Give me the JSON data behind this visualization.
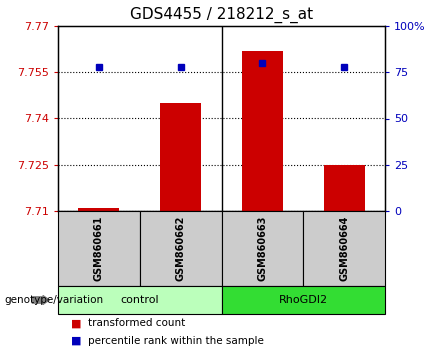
{
  "title": "GDS4455 / 218212_s_at",
  "samples": [
    "GSM860661",
    "GSM860662",
    "GSM860663",
    "GSM860664"
  ],
  "red_values": [
    7.711,
    7.745,
    7.762,
    7.725
  ],
  "blue_values": [
    78,
    78,
    80,
    78
  ],
  "ylim_left": [
    7.71,
    7.77
  ],
  "ylim_right": [
    0,
    100
  ],
  "yticks_left": [
    7.71,
    7.725,
    7.74,
    7.755,
    7.77
  ],
  "yticks_right": [
    0,
    25,
    50,
    75,
    100
  ],
  "ytick_labels_right": [
    "0",
    "25",
    "50",
    "75",
    "100%"
  ],
  "ytick_labels_left": [
    "7.71",
    "7.725",
    "7.74",
    "7.755",
    "7.77"
  ],
  "groups": [
    {
      "label": "control",
      "samples": [
        0,
        1
      ],
      "color": "#bbffbb"
    },
    {
      "label": "RhoGDI2",
      "samples": [
        2,
        3
      ],
      "color": "#33dd33"
    }
  ],
  "bar_color": "#cc0000",
  "dot_color": "#0000bb",
  "bar_width": 0.5,
  "group_label": "genotype/variation",
  "legend_red": "transformed count",
  "legend_blue": "percentile rank within the sample",
  "background_sample_row": "#cccccc",
  "title_fontsize": 11,
  "tick_fontsize": 8,
  "sample_fontsize": 7,
  "group_fontsize": 8,
  "legend_fontsize": 7.5
}
